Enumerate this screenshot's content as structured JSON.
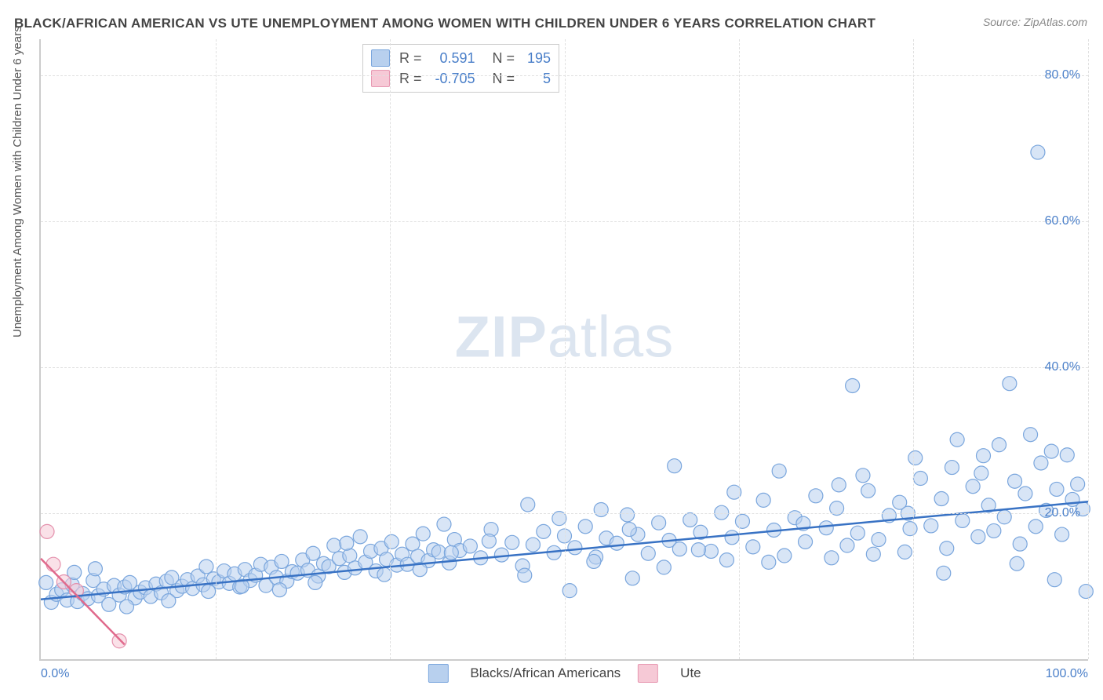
{
  "title": "BLACK/AFRICAN AMERICAN VS UTE UNEMPLOYMENT AMONG WOMEN WITH CHILDREN UNDER 6 YEARS CORRELATION CHART",
  "source": "Source: ZipAtlas.com",
  "y_axis_label": "Unemployment Among Women with Children Under 6 years",
  "watermark_zip": "ZIP",
  "watermark_atlas": "atlas",
  "chart": {
    "type": "scatter",
    "xlim": [
      0,
      100
    ],
    "ylim": [
      0,
      85
    ],
    "ytick_step": 20,
    "ytick_suffix": "%",
    "x_tick_labels": [
      "0.0%",
      "100.0%"
    ],
    "x_tick_positions": [
      0,
      100
    ],
    "vgrid_positions": [
      0,
      16.67,
      33.33,
      50,
      66.67,
      83.33,
      100
    ],
    "grid_color": "#e0e0e0",
    "background": "#ffffff",
    "marker_radius": 9,
    "marker_stroke_width": 1.2,
    "trend_line_width": 2.5,
    "series": {
      "blue": {
        "label": "Blacks/African Americans",
        "fill": "#b8d0ee",
        "stroke": "#7aa6dd",
        "fill_opacity": 0.55,
        "R": "0.591",
        "N": "195",
        "trend": {
          "x1": 0,
          "y1": 8.2,
          "x2": 100,
          "y2": 21.6,
          "color": "#3872c4"
        },
        "points": [
          [
            0.5,
            10.5
          ],
          [
            1.0,
            7.8
          ],
          [
            1.5,
            8.9
          ],
          [
            2.0,
            9.5
          ],
          [
            2.5,
            8.1
          ],
          [
            3.0,
            10.2
          ],
          [
            3.5,
            7.9
          ],
          [
            4.0,
            9.0
          ],
          [
            4.5,
            8.3
          ],
          [
            5.0,
            10.8
          ],
          [
            5.5,
            8.7
          ],
          [
            6.0,
            9.6
          ],
          [
            6.5,
            7.5
          ],
          [
            7.0,
            10.1
          ],
          [
            7.5,
            8.8
          ],
          [
            8.0,
            9.9
          ],
          [
            8.5,
            10.5
          ],
          [
            9.0,
            8.4
          ],
          [
            9.5,
            9.2
          ],
          [
            10.0,
            9.8
          ],
          [
            10.5,
            8.6
          ],
          [
            11.0,
            10.3
          ],
          [
            11.5,
            9.1
          ],
          [
            12.0,
            10.7
          ],
          [
            12.5,
            11.2
          ],
          [
            13.0,
            9.4
          ],
          [
            13.5,
            10.0
          ],
          [
            14.0,
            10.9
          ],
          [
            14.5,
            9.7
          ],
          [
            15.0,
            11.4
          ],
          [
            15.5,
            10.2
          ],
          [
            16.0,
            9.3
          ],
          [
            16.5,
            11.0
          ],
          [
            17.0,
            10.6
          ],
          [
            17.5,
            12.1
          ],
          [
            18.0,
            10.4
          ],
          [
            18.5,
            11.7
          ],
          [
            19.0,
            9.9
          ],
          [
            19.5,
            12.3
          ],
          [
            20.0,
            10.8
          ],
          [
            20.5,
            11.5
          ],
          [
            21.0,
            13.0
          ],
          [
            21.5,
            10.1
          ],
          [
            22.0,
            12.6
          ],
          [
            22.5,
            11.2
          ],
          [
            23.0,
            13.4
          ],
          [
            23.5,
            10.7
          ],
          [
            24.0,
            12.0
          ],
          [
            24.5,
            11.8
          ],
          [
            25.0,
            13.6
          ],
          [
            25.5,
            12.2
          ],
          [
            26.0,
            14.5
          ],
          [
            26.5,
            11.4
          ],
          [
            27.0,
            13.1
          ],
          [
            27.5,
            12.7
          ],
          [
            28.0,
            15.6
          ],
          [
            28.5,
            13.8
          ],
          [
            29.0,
            11.9
          ],
          [
            29.5,
            14.2
          ],
          [
            30.0,
            12.5
          ],
          [
            30.5,
            16.8
          ],
          [
            31.0,
            13.3
          ],
          [
            31.5,
            14.8
          ],
          [
            32.0,
            12.1
          ],
          [
            32.5,
            15.2
          ],
          [
            33.0,
            13.7
          ],
          [
            33.5,
            16.1
          ],
          [
            34.0,
            12.9
          ],
          [
            34.5,
            14.4
          ],
          [
            35.0,
            13.0
          ],
          [
            35.5,
            15.8
          ],
          [
            36.0,
            14.1
          ],
          [
            36.5,
            17.2
          ],
          [
            37.0,
            13.5
          ],
          [
            37.5,
            15.0
          ],
          [
            38.0,
            14.7
          ],
          [
            38.5,
            18.5
          ],
          [
            39.0,
            13.2
          ],
          [
            39.5,
            16.4
          ],
          [
            40.0,
            14.9
          ],
          [
            41.0,
            15.5
          ],
          [
            42.0,
            13.9
          ],
          [
            43.0,
            17.8
          ],
          [
            44.0,
            14.3
          ],
          [
            45.0,
            16.0
          ],
          [
            46.0,
            12.8
          ],
          [
            46.5,
            21.2
          ],
          [
            47.0,
            15.7
          ],
          [
            48.0,
            17.5
          ],
          [
            49.0,
            14.6
          ],
          [
            50.0,
            16.9
          ],
          [
            50.5,
            9.4
          ],
          [
            51.0,
            15.3
          ],
          [
            52.0,
            18.2
          ],
          [
            53.0,
            14.0
          ],
          [
            53.5,
            20.5
          ],
          [
            54.0,
            16.6
          ],
          [
            55.0,
            15.9
          ],
          [
            56.0,
            19.8
          ],
          [
            56.5,
            11.1
          ],
          [
            57.0,
            17.1
          ],
          [
            58.0,
            14.5
          ],
          [
            59.0,
            18.7
          ],
          [
            60.0,
            16.3
          ],
          [
            60.5,
            26.5
          ],
          [
            61.0,
            15.1
          ],
          [
            62.0,
            19.1
          ],
          [
            63.0,
            17.4
          ],
          [
            64.0,
            14.8
          ],
          [
            65.0,
            20.1
          ],
          [
            65.5,
            13.6
          ],
          [
            66.0,
            16.7
          ],
          [
            67.0,
            18.9
          ],
          [
            68.0,
            15.4
          ],
          [
            69.0,
            21.8
          ],
          [
            70.0,
            17.7
          ],
          [
            70.5,
            25.8
          ],
          [
            71.0,
            14.2
          ],
          [
            72.0,
            19.4
          ],
          [
            73.0,
            16.1
          ],
          [
            74.0,
            22.4
          ],
          [
            75.0,
            18.0
          ],
          [
            75.5,
            13.9
          ],
          [
            76.0,
            20.7
          ],
          [
            77.0,
            15.6
          ],
          [
            77.5,
            37.5
          ],
          [
            78.0,
            17.3
          ],
          [
            78.5,
            25.2
          ],
          [
            79.0,
            23.1
          ],
          [
            80.0,
            16.4
          ],
          [
            81.0,
            19.7
          ],
          [
            82.0,
            21.5
          ],
          [
            82.5,
            14.7
          ],
          [
            83.0,
            17.9
          ],
          [
            83.5,
            27.6
          ],
          [
            84.0,
            24.8
          ],
          [
            85.0,
            18.3
          ],
          [
            86.0,
            22.0
          ],
          [
            86.5,
            15.2
          ],
          [
            87.0,
            26.3
          ],
          [
            87.5,
            30.1
          ],
          [
            88.0,
            19.0
          ],
          [
            89.0,
            23.7
          ],
          [
            89.5,
            16.8
          ],
          [
            90.0,
            27.9
          ],
          [
            90.5,
            21.1
          ],
          [
            91.0,
            17.6
          ],
          [
            91.5,
            29.4
          ],
          [
            92.0,
            19.5
          ],
          [
            92.5,
            37.8
          ],
          [
            93.0,
            24.4
          ],
          [
            93.5,
            15.8
          ],
          [
            94.0,
            22.7
          ],
          [
            94.5,
            30.8
          ],
          [
            95.0,
            18.2
          ],
          [
            95.2,
            69.5
          ],
          [
            95.5,
            26.9
          ],
          [
            96.0,
            20.4
          ],
          [
            96.5,
            28.5
          ],
          [
            97.0,
            23.3
          ],
          [
            97.5,
            17.1
          ],
          [
            98.0,
            28.0
          ],
          [
            98.5,
            21.9
          ],
          [
            99.0,
            24.0
          ],
          [
            99.5,
            20.6
          ],
          [
            5.2,
            12.4
          ],
          [
            8.2,
            7.2
          ],
          [
            12.2,
            8.0
          ],
          [
            15.8,
            12.7
          ],
          [
            19.2,
            10.0
          ],
          [
            22.8,
            9.5
          ],
          [
            26.2,
            10.5
          ],
          [
            29.2,
            15.9
          ],
          [
            32.8,
            11.6
          ],
          [
            36.2,
            12.3
          ],
          [
            39.2,
            14.6
          ],
          [
            42.8,
            16.2
          ],
          [
            46.2,
            11.5
          ],
          [
            49.5,
            19.3
          ],
          [
            52.8,
            13.4
          ],
          [
            56.2,
            17.8
          ],
          [
            59.5,
            12.6
          ],
          [
            62.8,
            15.0
          ],
          [
            66.2,
            22.9
          ],
          [
            69.5,
            13.3
          ],
          [
            72.8,
            18.6
          ],
          [
            76.2,
            23.9
          ],
          [
            79.5,
            14.4
          ],
          [
            82.8,
            20.0
          ],
          [
            86.2,
            11.8
          ],
          [
            89.8,
            25.5
          ],
          [
            93.2,
            13.1
          ],
          [
            96.8,
            10.9
          ],
          [
            99.8,
            9.3
          ],
          [
            3.2,
            11.9
          ]
        ]
      },
      "pink": {
        "label": "Ute",
        "fill": "#f6c9d6",
        "stroke": "#e490ac",
        "fill_opacity": 0.55,
        "R": "-0.705",
        "N": "5",
        "trend": {
          "x1": 0,
          "y1": 13.8,
          "x2": 8,
          "y2": 2.0,
          "color": "#e06a8c"
        },
        "points": [
          [
            0.6,
            17.5
          ],
          [
            1.2,
            13.0
          ],
          [
            2.2,
            10.6
          ],
          [
            3.4,
            9.4
          ],
          [
            7.5,
            2.5
          ]
        ]
      }
    }
  },
  "stats_legend": {
    "rows": [
      {
        "swatch": "blue",
        "r_label": "R =",
        "r_val": "0.591",
        "n_label": "N =",
        "n_val": "195"
      },
      {
        "swatch": "pink",
        "r_label": "R =",
        "r_val": "-0.705",
        "n_label": "N =",
        "n_val": "5"
      }
    ]
  },
  "bottom_legend": [
    {
      "swatch": "blue",
      "label": "Blacks/African Americans"
    },
    {
      "swatch": "pink",
      "label": "Ute"
    }
  ]
}
